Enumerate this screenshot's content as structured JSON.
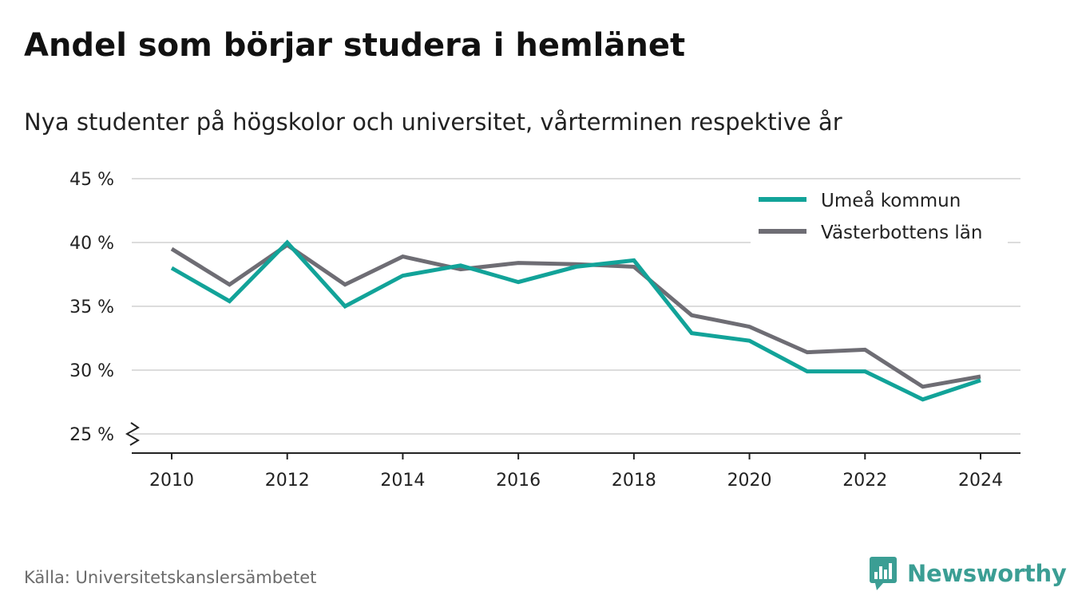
{
  "header": {
    "title": "Andel som börjar studera i hemlänet",
    "subtitle": "Nya studenter på högskolor och universitet, vårterminen respektive år"
  },
  "footer": {
    "source": "Källa: Universitetskanslersämbetet",
    "brand": "Newsworthy",
    "brand_icon": "newsworthy-logo-icon"
  },
  "colors": {
    "umea": "#12a399",
    "vasterbotten": "#6e6d74",
    "grid": "#dcdcdc",
    "axis": "#222222",
    "brand": "#3b9e94"
  },
  "chart_data": {
    "type": "line",
    "x": [
      2010,
      2011,
      2012,
      2013,
      2014,
      2015,
      2016,
      2017,
      2018,
      2019,
      2020,
      2021,
      2022,
      2023,
      2024
    ],
    "series": [
      {
        "name": "Umeå kommun",
        "values": [
          38.0,
          35.4,
          40.0,
          35.0,
          37.4,
          38.2,
          36.9,
          38.1,
          38.6,
          32.9,
          32.3,
          29.9,
          29.9,
          27.7,
          29.2
        ]
      },
      {
        "name": "Västerbottens län",
        "values": [
          39.5,
          36.7,
          39.8,
          36.7,
          38.9,
          37.9,
          38.4,
          38.3,
          38.1,
          34.3,
          33.4,
          31.4,
          31.6,
          28.7,
          29.5
        ]
      }
    ],
    "yticks": [
      {
        "value": 25,
        "label": "25 %"
      },
      {
        "value": 30,
        "label": "30 %"
      },
      {
        "value": 35,
        "label": "35 %"
      },
      {
        "value": 40,
        "label": "40 %"
      },
      {
        "value": 45,
        "label": "45 %"
      }
    ],
    "xticks": [
      {
        "value": 2010,
        "label": "2010"
      },
      {
        "value": 2012,
        "label": "2012"
      },
      {
        "value": 2014,
        "label": "2014"
      },
      {
        "value": 2016,
        "label": "2016"
      },
      {
        "value": 2018,
        "label": "2018"
      },
      {
        "value": 2020,
        "label": "2020"
      },
      {
        "value": 2022,
        "label": "2022"
      },
      {
        "value": 2024,
        "label": "2024"
      }
    ],
    "ylim": [
      25,
      45
    ],
    "xlim": [
      2010,
      2024
    ],
    "y_axis_break": true,
    "grid": true,
    "legend": "top-right"
  }
}
